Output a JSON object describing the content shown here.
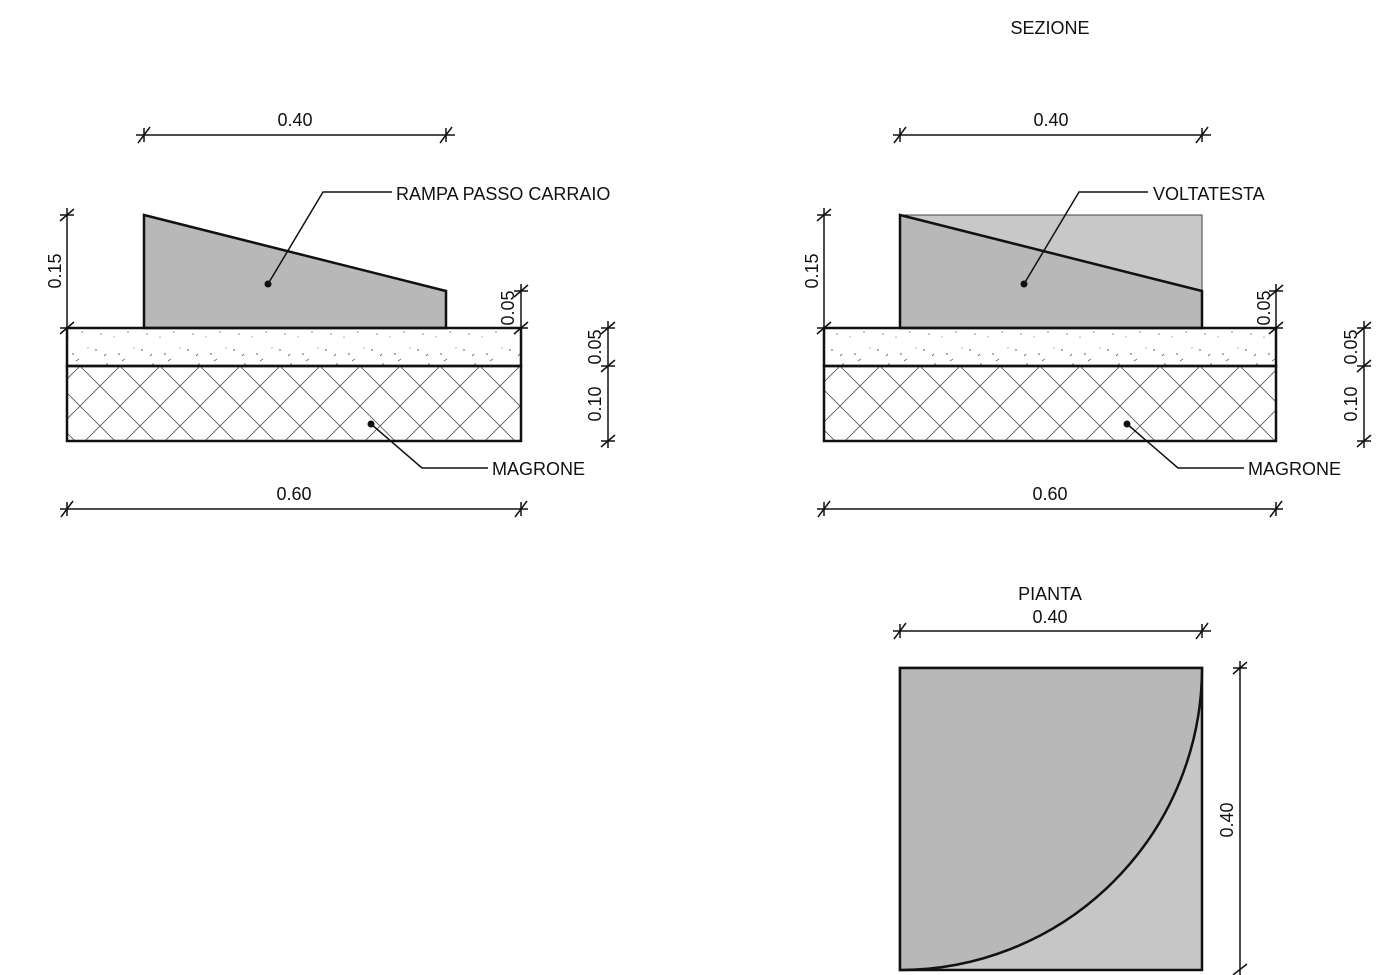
{
  "titles": {
    "section": "SEZIONE",
    "plan": "PIANTA"
  },
  "labels": {
    "left_component": "RAMPA PASSO CARRAIO",
    "right_component": "VOLTATESTA",
    "left_base": "MAGRONE",
    "right_base": "MAGRONE"
  },
  "dimensions": {
    "left_top_width": "0.40",
    "left_total_width": "0.60",
    "left_height_high": "0.15",
    "left_height_low": "0.05",
    "left_layer_top": "0.05",
    "left_layer_bottom": "0.10",
    "right_top_width": "0.40",
    "right_total_width": "0.60",
    "right_height_high": "0.15",
    "right_height_low": "0.05",
    "right_layer_top": "0.05",
    "right_layer_bottom": "0.10",
    "plan_width": "0.40",
    "plan_height": "0.40"
  },
  "colors": {
    "ramp_fill": "#b8b8b8",
    "ghost_fill": "#c8c8c8",
    "plan_fill_dark": "#b8b8b8",
    "plan_fill_light": "#c6c6c6",
    "line": "#111111"
  }
}
